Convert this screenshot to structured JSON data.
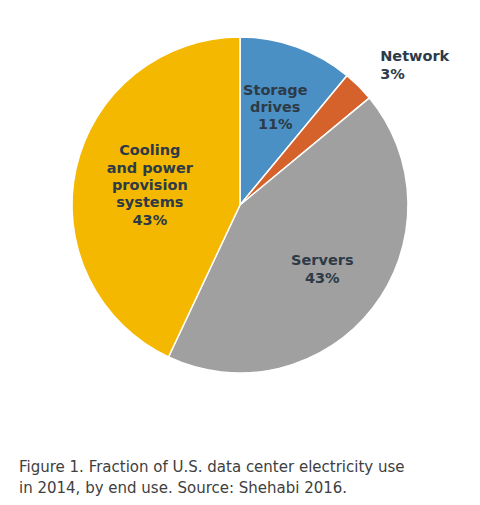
{
  "chart_data": {
    "type": "pie",
    "categories": [
      "Storage\ndrives",
      "Network",
      "Servers",
      "Cooling\nand power\nprovision\nsystems"
    ],
    "values": [
      11,
      3,
      43,
      43
    ],
    "value_labels": [
      "11%",
      "3%",
      "43%",
      "43%"
    ],
    "colors": [
      "#4a90c4",
      "#d4622a",
      "#a0a0a0",
      "#f5b800"
    ],
    "data_labels": true,
    "caption": "Figure 1. Fraction of U.S. data center electricity use\nin 2014, by end use. Source: Shehabi 2016."
  }
}
